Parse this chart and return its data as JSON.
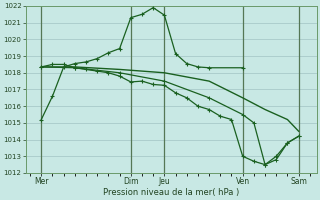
{
  "xlabel": "Pression niveau de la mer( hPa )",
  "ylim": [
    1012,
    1022
  ],
  "yticks": [
    1012,
    1013,
    1014,
    1015,
    1016,
    1017,
    1018,
    1019,
    1020,
    1021,
    1022
  ],
  "x_day_positions": [
    0.5,
    4.5,
    6.0,
    9.5,
    12.0
  ],
  "x_day_labels": [
    "Mer",
    "Dim",
    "Jeu",
    "Ven",
    "Sam"
  ],
  "bg_color": "#c8e8e4",
  "grid_major_color": "#99bbbb",
  "grid_minor_color": "#b8d8d8",
  "line_color": "#1a6020",
  "vlines_x": [
    0.5,
    4.5,
    6.0,
    9.5,
    12.0
  ],
  "xlim": [
    -0.2,
    12.8
  ],
  "line1_x": [
    0.5,
    1.0,
    1.5,
    2.0,
    2.5,
    3.0,
    3.5,
    4.0,
    4.5,
    5.0,
    5.5,
    6.0,
    6.5,
    7.0,
    7.5,
    8.0,
    9.5
  ],
  "line1_y": [
    1015.2,
    1016.6,
    1018.35,
    1018.55,
    1018.65,
    1018.85,
    1019.2,
    1019.45,
    1021.3,
    1021.5,
    1021.9,
    1021.45,
    1019.15,
    1018.55,
    1018.35,
    1018.3,
    1018.3
  ],
  "line2_x": [
    0.5,
    1.0,
    1.5,
    2.0,
    2.5,
    3.0,
    3.5,
    4.0,
    4.5,
    5.0,
    5.5,
    6.0,
    6.5,
    7.0,
    7.5,
    8.0,
    8.5,
    9.0,
    9.5,
    10.0,
    10.5,
    11.0,
    11.5,
    12.0
  ],
  "line2_y": [
    1018.35,
    1018.5,
    1018.5,
    1018.3,
    1018.2,
    1018.1,
    1018.0,
    1017.8,
    1017.45,
    1017.5,
    1017.3,
    1017.25,
    1016.8,
    1016.5,
    1016.0,
    1015.8,
    1015.4,
    1015.2,
    1013.0,
    1012.7,
    1012.5,
    1013.0,
    1013.8,
    1014.2
  ],
  "line3_x": [
    0.5,
    2.0,
    4.0,
    6.0,
    8.0,
    9.5,
    10.5,
    11.5,
    12.0
  ],
  "line3_y": [
    1018.35,
    1018.35,
    1018.2,
    1018.0,
    1017.5,
    1016.5,
    1015.8,
    1015.2,
    1014.5
  ],
  "line4_x": [
    0.5,
    2.0,
    4.0,
    6.0,
    8.0,
    9.5,
    10.0,
    10.5,
    11.0,
    11.5,
    12.0
  ],
  "line4_y": [
    1018.35,
    1018.3,
    1018.0,
    1017.5,
    1016.5,
    1015.5,
    1015.0,
    1012.5,
    1012.8,
    1013.8,
    1014.2
  ]
}
